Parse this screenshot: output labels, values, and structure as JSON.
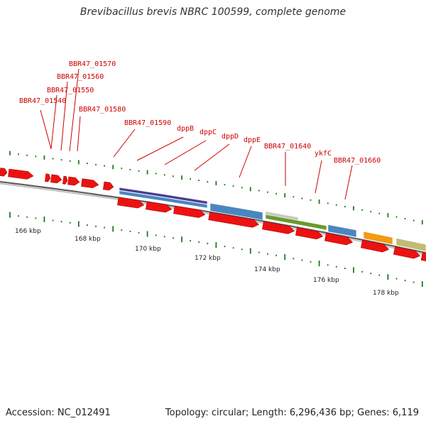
{
  "header": {
    "title": "Brevibacillus brevis NBRC 100599, complete genome"
  },
  "footer": {
    "accession": "Accession: NC_012491",
    "topology": "Topology: circular; Length: 6,296,436 bp; Genes: 6,119"
  },
  "scale": {
    "unit": "kbp",
    "labels": [
      "166 kbp",
      "168 kbp",
      "170 kbp",
      "172 kbp",
      "174 kbp",
      "176 kbp",
      "178 kbp"
    ]
  },
  "gene_labels": [
    {
      "name": "BBR47_01570"
    },
    {
      "name": "BBR47_01560"
    },
    {
      "name": "BBR47_01550"
    },
    {
      "name": "BBR47_01540"
    },
    {
      "name": "BBR47_01580"
    },
    {
      "name": "BBR47_01590"
    },
    {
      "name": "dppB"
    },
    {
      "name": "dppC"
    },
    {
      "name": "dppD"
    },
    {
      "name": "dppE"
    },
    {
      "name": "BBR47_01640"
    },
    {
      "name": "ykfC"
    },
    {
      "name": "BBR47_01660"
    }
  ],
  "colors": {
    "gene_red": "#ee1111",
    "label_red": "#cc0000",
    "tick_green": "#227722",
    "backbone_gray": "#888888",
    "blue": "#4a86bf",
    "purple": "#4a3f8f",
    "olive_green": "#6a9a2a",
    "light_gray": "#c8c8c8",
    "orange": "#f39a12",
    "khaki": "#c2bb73"
  }
}
